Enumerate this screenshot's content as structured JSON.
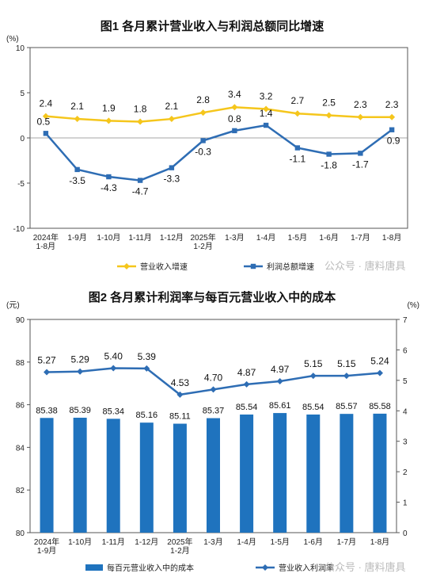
{
  "colors": {
    "revenue": "#F5C61C",
    "profit": "#2E6DB4",
    "bar": "#1F73BE",
    "grid": "#dddddd",
    "axis": "#555555"
  },
  "watermark": "公众号 · 唐料唐具",
  "chart_data": [
    {
      "type": "line",
      "title": "图1  各月累计营业收入与利润总额同比增速",
      "yunit": "(%)",
      "ylim": [
        -10,
        10
      ],
      "yticks": [
        "-10",
        "-5",
        "0",
        "5",
        "10"
      ],
      "categories": [
        "2024年\n1-8月",
        "1-9月",
        "1-10月",
        "1-11月",
        "1-12月",
        "2025年\n1-2月",
        "1-3月",
        "1-4月",
        "1-5月",
        "1-6月",
        "1-7月",
        "1-8月"
      ],
      "legend_position": "bottom",
      "series": [
        {
          "name": "营业收入增速",
          "color_key": "revenue",
          "marker": "diamond",
          "values": [
            2.4,
            2.1,
            1.9,
            1.8,
            2.1,
            2.8,
            3.4,
            3.2,
            2.7,
            2.5,
            2.3,
            2.3
          ],
          "labels": [
            "2.4",
            "2.1",
            "1.9",
            "1.8",
            "2.1",
            "2.8",
            "3.4",
            "3.2",
            "2.7",
            "2.5",
            "2.3",
            "2.3"
          ]
        },
        {
          "name": "利润总额增速",
          "color_key": "profit",
          "marker": "square",
          "values": [
            0.5,
            -3.5,
            -4.3,
            -4.7,
            -3.3,
            -0.3,
            0.8,
            1.4,
            -1.1,
            -1.8,
            -1.7,
            0.9
          ],
          "labels": [
            "0.5",
            "-3.5",
            "-4.3",
            "-4.7",
            "-3.3",
            "-0.3",
            "0.8",
            "1.4",
            "-1.1",
            "-1.8",
            "-1.7",
            "0.9"
          ]
        }
      ]
    },
    {
      "type": "bar+line",
      "title": "图2  各月累计利润率与每百元营业收入中的成本",
      "yunit_left": "(元)",
      "yunit_right": "(%)",
      "ylim_left": [
        80,
        90
      ],
      "yticks_left": [
        "80",
        "82",
        "84",
        "86",
        "88",
        "90"
      ],
      "ylim_right": [
        0,
        7
      ],
      "yticks_right": [
        "0",
        "1",
        "2",
        "3",
        "4",
        "5",
        "6",
        "7"
      ],
      "categories": [
        "2024年\n1-9月",
        "1-10月",
        "1-11月",
        "1-12月",
        "2025年\n1-2月",
        "1-3月",
        "1-4月",
        "1-5月",
        "1-6月",
        "1-7月",
        "1-8月"
      ],
      "legend_position": "bottom",
      "series": [
        {
          "name": "每百元营业收入中的成本",
          "kind": "bar",
          "axis": "left",
          "color_key": "bar",
          "values": [
            85.38,
            85.39,
            85.34,
            85.16,
            85.11,
            85.37,
            85.54,
            85.61,
            85.54,
            85.57,
            85.58
          ],
          "labels": [
            "85.38",
            "85.39",
            "85.34",
            "85.16",
            "85.11",
            "85.37",
            "85.54",
            "85.61",
            "85.54",
            "85.57",
            "85.58"
          ]
        },
        {
          "name": "营业收入利润率",
          "kind": "line",
          "axis": "right",
          "color_key": "profit",
          "marker": "diamond",
          "values": [
            5.27,
            5.29,
            5.4,
            5.39,
            4.53,
            4.7,
            4.87,
            4.97,
            5.15,
            5.15,
            5.24
          ],
          "labels": [
            "5.27",
            "5.29",
            "5.40",
            "5.39",
            "4.53",
            "4.70",
            "4.87",
            "4.97",
            "5.15",
            "5.15",
            "5.24"
          ]
        }
      ]
    }
  ]
}
